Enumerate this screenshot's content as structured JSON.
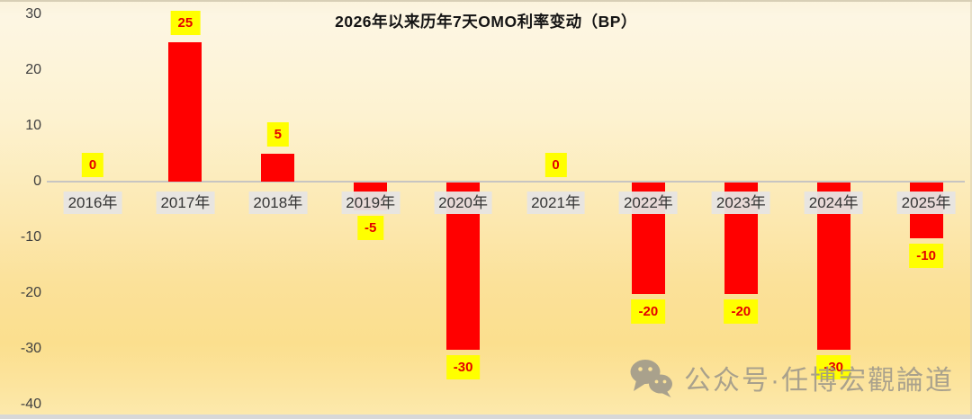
{
  "title": "2026年以来历年7天OMO利率变动（BP）",
  "watermark": {
    "icon": "wechat-icon",
    "text": "公众号·任博宏觀論道"
  },
  "chart_data": {
    "type": "bar",
    "title": "2026年以来历年7天OMO利率变动（BP）",
    "categories": [
      "2016年",
      "2017年",
      "2018年",
      "2019年",
      "2020年",
      "2021年",
      "2022年",
      "2023年",
      "2024年",
      "2025年"
    ],
    "values": [
      0,
      25,
      5,
      -5,
      -30,
      0,
      -20,
      -20,
      -30,
      -10
    ],
    "data_labels": [
      "0",
      "25",
      "5",
      "-5",
      "-30",
      "0",
      "-20",
      "-20",
      "-30",
      "-10"
    ],
    "xlabel": "",
    "ylabel": "",
    "ylim": [
      -40,
      30
    ],
    "yticks": [
      30,
      20,
      10,
      0,
      -10,
      -20,
      -30,
      -40
    ],
    "grid": false,
    "legend": false,
    "bar_color": "#FF0000",
    "data_label_bg": "#FFFF00",
    "data_label_color": "#E40000"
  },
  "colors": {
    "background_top": "#FDF6E3",
    "background_gold": "#FBDF8E",
    "axis_line": "#C7C5C2",
    "category_label_bg": "#E7E5E3",
    "category_label_text": "#353535",
    "tick_text": "#3F3F3F",
    "watermark_gray": "#9B968A",
    "bottom_strip": "#D8D8D8"
  }
}
